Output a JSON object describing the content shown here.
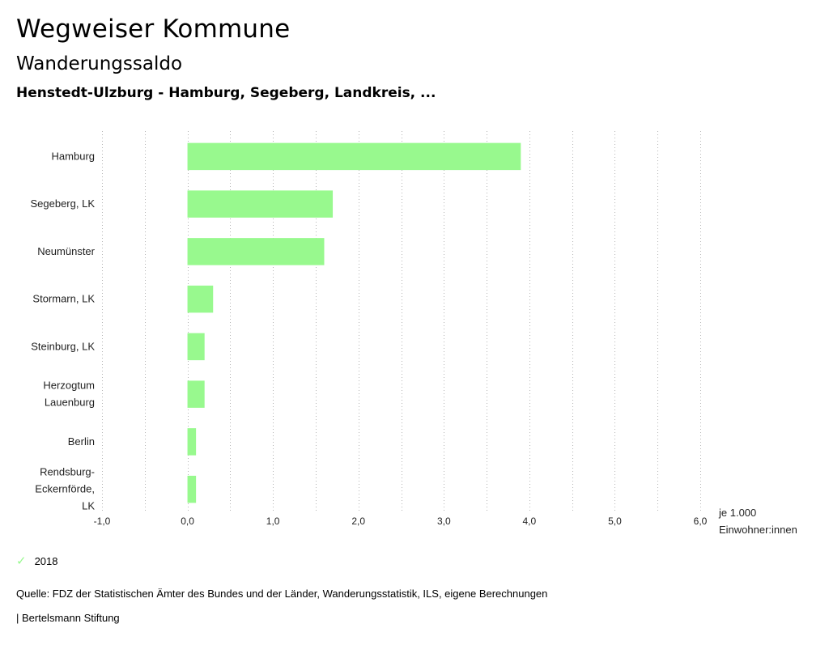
{
  "header": {
    "title": "Wegweiser Kommune",
    "subtitle": "Wanderungssaldo",
    "region": "Henstedt-Ulzburg - Hamburg, Segeberg, Landkreis, ..."
  },
  "chart_data": {
    "type": "bar",
    "orientation": "horizontal",
    "categories": [
      [
        "Hamburg"
      ],
      [
        "Segeberg, LK"
      ],
      [
        "Neumünster"
      ],
      [
        "Stormarn, LK"
      ],
      [
        "Steinburg, LK"
      ],
      [
        "Herzogtum",
        "Lauenburg"
      ],
      [
        "Berlin"
      ],
      [
        "Rendsburg-",
        "Eckernförde,",
        "LK"
      ]
    ],
    "series": [
      {
        "name": "2018",
        "values": [
          3.9,
          1.7,
          1.6,
          0.3,
          0.2,
          0.2,
          0.1,
          0.1
        ]
      }
    ],
    "xlim": [
      -1.0,
      6.0
    ],
    "xticks": [
      "-1,0",
      "0,0",
      "1,0",
      "2,0",
      "3,0",
      "4,0",
      "5,0",
      "6,0"
    ],
    "xlabel": [
      "je 1.000",
      "Einwohner:innen"
    ],
    "grid": "vertical dotted",
    "bar_color": "#98f98e"
  },
  "legend": {
    "label": "2018",
    "color": "#98f98e"
  },
  "footer": {
    "source": "Quelle: FDZ der Statistischen Ämter des Bundes und der Länder, Wanderungsstatistik, ILS, eigene Berechnungen",
    "publisher": "| Bertelsmann Stiftung"
  }
}
